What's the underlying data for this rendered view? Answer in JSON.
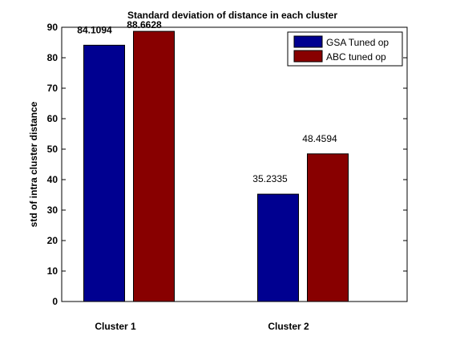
{
  "chart_data": {
    "type": "bar",
    "title": "Standard deviation of distance in each cluster",
    "xlabel": "",
    "ylabel": "std of intra cluster distance",
    "categories": [
      "Cluster 1",
      "Cluster 2"
    ],
    "ylim": [
      0,
      90
    ],
    "yticks": [
      0,
      10,
      20,
      30,
      40,
      50,
      60,
      70,
      80,
      90
    ],
    "series": [
      {
        "name": "GSA Tuned op",
        "color": "#000090",
        "values": [
          84.1094,
          35.2335
        ]
      },
      {
        "name": "ABC tuned op",
        "color": "#880000",
        "values": [
          88.6628,
          48.4594
        ]
      }
    ],
    "data_labels": [
      [
        "84.1094",
        "35.2335"
      ],
      [
        "88.6628",
        "48.4594"
      ]
    ],
    "legend_position": "top-right",
    "grid": false
  }
}
